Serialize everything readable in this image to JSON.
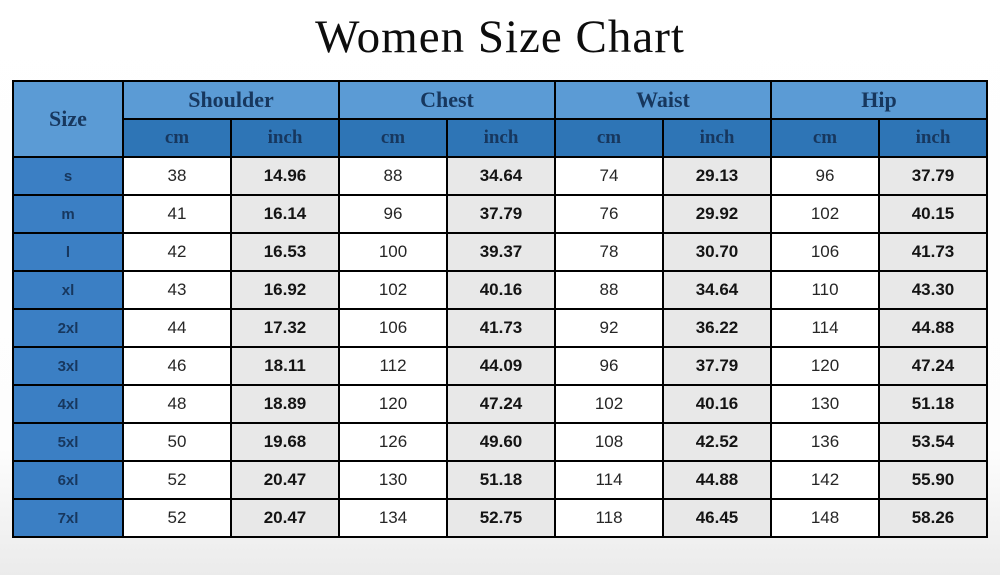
{
  "title": "Women Size Chart",
  "colors": {
    "header_light": "#5b9bd5",
    "header_dark": "#2e75b6",
    "row_label": "#3b7fc4",
    "header_text": "#17375e",
    "inch_bg": "#e8e8e8",
    "cm_bg": "#ffffff",
    "border": "#000000"
  },
  "chart_data": {
    "type": "table",
    "title": "Women Size Chart",
    "size_column_header": "Size",
    "groups": [
      "Shoulder",
      "Chest",
      "Waist",
      "Hip"
    ],
    "unit_headers": [
      "cm",
      "inch"
    ],
    "columns": [
      "shoulder_cm",
      "shoulder_inch",
      "chest_cm",
      "chest_inch",
      "waist_cm",
      "waist_inch",
      "hip_cm",
      "hip_inch"
    ],
    "rows": [
      {
        "size": "s",
        "values": [
          "38",
          "14.96",
          "88",
          "34.64",
          "74",
          "29.13",
          "96",
          "37.79"
        ]
      },
      {
        "size": "m",
        "values": [
          "41",
          "16.14",
          "96",
          "37.79",
          "76",
          "29.92",
          "102",
          "40.15"
        ]
      },
      {
        "size": "l",
        "values": [
          "42",
          "16.53",
          "100",
          "39.37",
          "78",
          "30.70",
          "106",
          "41.73"
        ]
      },
      {
        "size": "xl",
        "values": [
          "43",
          "16.92",
          "102",
          "40.16",
          "88",
          "34.64",
          "110",
          "43.30"
        ]
      },
      {
        "size": "2xl",
        "values": [
          "44",
          "17.32",
          "106",
          "41.73",
          "92",
          "36.22",
          "114",
          "44.88"
        ]
      },
      {
        "size": "3xl",
        "values": [
          "46",
          "18.11",
          "112",
          "44.09",
          "96",
          "37.79",
          "120",
          "47.24"
        ]
      },
      {
        "size": "4xl",
        "values": [
          "48",
          "18.89",
          "120",
          "47.24",
          "102",
          "40.16",
          "130",
          "51.18"
        ]
      },
      {
        "size": "5xl",
        "values": [
          "50",
          "19.68",
          "126",
          "49.60",
          "108",
          "42.52",
          "136",
          "53.54"
        ]
      },
      {
        "size": "6xl",
        "values": [
          "52",
          "20.47",
          "130",
          "51.18",
          "114",
          "44.88",
          "142",
          "55.90"
        ]
      },
      {
        "size": "7xl",
        "values": [
          "52",
          "20.47",
          "134",
          "52.75",
          "118",
          "46.45",
          "148",
          "58.26"
        ]
      }
    ]
  }
}
